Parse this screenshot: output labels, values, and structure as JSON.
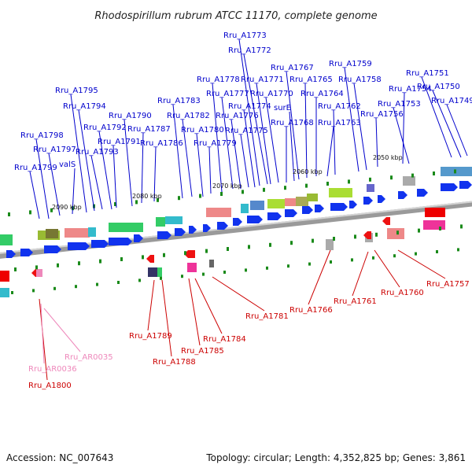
{
  "title": "Rhodospirillum rubrum ATCC 11170, complete genome",
  "footer": {
    "accession": "Accession: NC_007643",
    "topology": "Topology: circular; Length: 4,352,825 bp; Genes: 3,861"
  },
  "colors": {
    "forward": "#0000cc",
    "reverse": "#cc0000",
    "rna": "#ee88bb"
  },
  "scale_labels": [
    "2090 kbp",
    "2080 kbp",
    "2070 kbp",
    "2060 kbp",
    "2050 kbp"
  ],
  "forward_genes": [
    "Rru_A1799",
    "Rru_A1798",
    "Rru_A1797",
    "valS",
    "Rru_A1795",
    "Rru_A1794",
    "Rru_A1793",
    "Rru_A1792",
    "Rru_A1791",
    "Rru_A1790",
    "Rru_A1787",
    "Rru_A1786",
    "Rru_A1783",
    "Rru_A1782",
    "Rru_A1780",
    "Rru_A1779",
    "Rru_A1778",
    "Rru_A1777",
    "Rru_A1776",
    "Rru_A1775",
    "Rru_A1774",
    "Rru_A1773",
    "Rru_A1772",
    "Rru_A1771",
    "Rru_A1770",
    "Rru_A1768",
    "surE",
    "Rru_A1767",
    "Rru_A1765",
    "Rru_A1764",
    "Rru_A1763",
    "Rru_A1762",
    "Rru_A1759",
    "Rru_A1758",
    "Rru_A1756",
    "Rru_A1754",
    "Rru_A1753",
    "Rru_A1751",
    "Rru_A1750",
    "Rru_A1749"
  ],
  "reverse_genes": [
    "Rru_A1800",
    "Rru_A1789",
    "Rru_A1788",
    "Rru_A1785",
    "Rru_A1784",
    "Rru_A1781",
    "Rru_A1766",
    "Rru_A1761",
    "Rru_A1760",
    "Rru_A1757"
  ],
  "rna_genes": [
    "Rru_AR0036",
    "Rru_AR0035"
  ]
}
